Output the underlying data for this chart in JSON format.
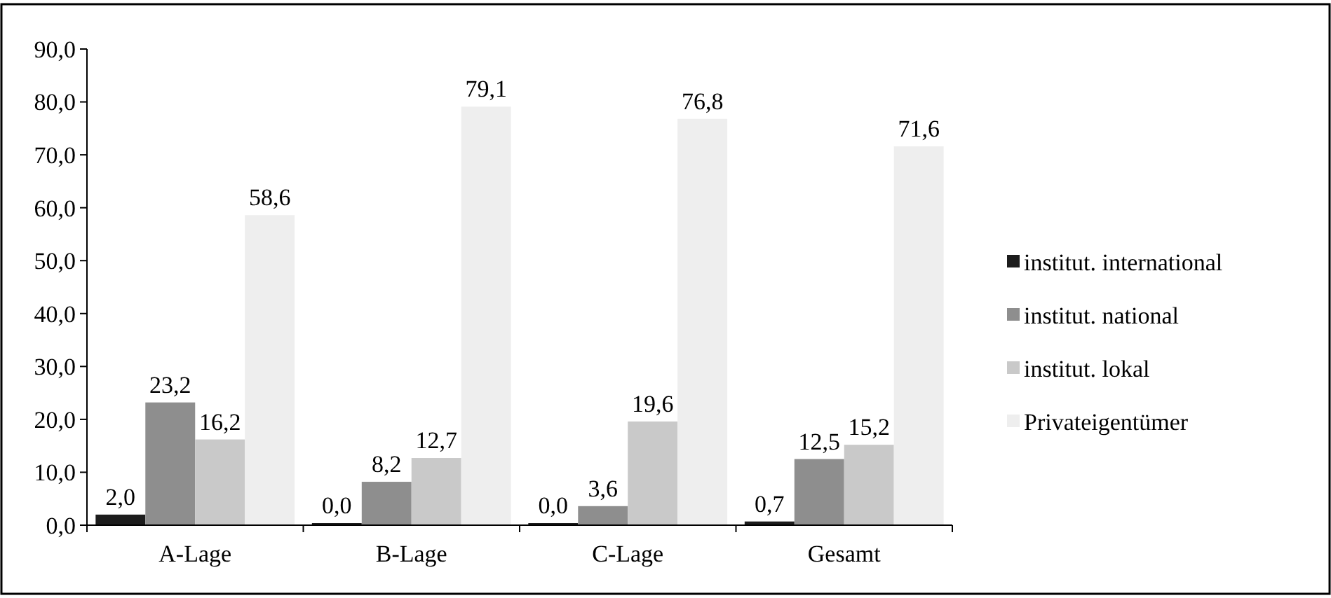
{
  "chart_data": {
    "type": "bar",
    "categories": [
      "A-Lage",
      "B-Lage",
      "C-Lage",
      "Gesamt"
    ],
    "series": [
      {
        "name": "institut. international",
        "color": "#1c1c1c",
        "values": [
          2.0,
          0.0,
          0.0,
          0.7
        ],
        "value_labels": [
          "2,0",
          "0,0",
          "0,0",
          "0,7"
        ]
      },
      {
        "name": "institut. national",
        "color": "#8e8e8e",
        "values": [
          23.2,
          8.2,
          3.6,
          12.5
        ],
        "value_labels": [
          "23,2",
          "8,2",
          "3,6",
          "12,5"
        ]
      },
      {
        "name": "institut. lokal",
        "color": "#c9c9c9",
        "values": [
          16.2,
          12.7,
          19.6,
          15.2
        ],
        "value_labels": [
          "16,2",
          "12,7",
          "19,6",
          "15,2"
        ]
      },
      {
        "name": "Privateigentümer",
        "color": "#eeeeee",
        "values": [
          58.6,
          79.1,
          76.8,
          71.6
        ],
        "value_labels": [
          "58,6",
          "79,1",
          "76,8",
          "71,6"
        ]
      }
    ],
    "ylim": [
      0,
      90
    ],
    "yticks": [
      {
        "value": 0,
        "label": "0,0"
      },
      {
        "value": 10,
        "label": "10,0"
      },
      {
        "value": 20,
        "label": "20,0"
      },
      {
        "value": 30,
        "label": "30,0"
      },
      {
        "value": 40,
        "label": "40,0"
      },
      {
        "value": 50,
        "label": "50,0"
      },
      {
        "value": 60,
        "label": "60,0"
      },
      {
        "value": 70,
        "label": "70,0"
      },
      {
        "value": 80,
        "label": "80,0"
      },
      {
        "value": 90,
        "label": "90,0"
      }
    ],
    "grid": false,
    "legend": "right"
  }
}
